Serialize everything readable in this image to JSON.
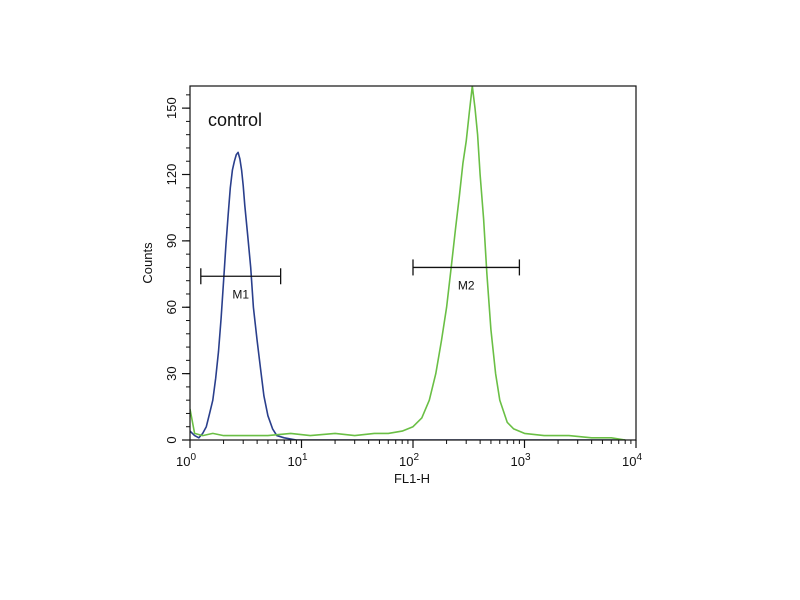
{
  "chart_data": {
    "type": "line",
    "title": "",
    "xlabel": "FL1-H",
    "ylabel": "Counts",
    "x_scale": "log",
    "xlim": [
      1,
      10000
    ],
    "ylim": [
      0,
      160
    ],
    "grid": false,
    "annotation": "control",
    "x_ticks": [
      {
        "value": 1,
        "base": "10",
        "exp": "0"
      },
      {
        "value": 10,
        "base": "10",
        "exp": "1"
      },
      {
        "value": 100,
        "base": "10",
        "exp": "2"
      },
      {
        "value": 1000,
        "base": "10",
        "exp": "3"
      },
      {
        "value": 10000,
        "base": "10",
        "exp": "4"
      }
    ],
    "y_ticks": [
      {
        "value": 0,
        "label": "0"
      },
      {
        "value": 30,
        "label": "30"
      },
      {
        "value": 60,
        "label": "60"
      },
      {
        "value": 90,
        "label": "90"
      },
      {
        "value": 120,
        "label": "120"
      },
      {
        "value": 150,
        "label": "150"
      }
    ],
    "series": [
      {
        "color": "#2a3f8c",
        "points": [
          [
            1.0,
            4
          ],
          [
            1.1,
            2
          ],
          [
            1.2,
            1
          ],
          [
            1.3,
            3
          ],
          [
            1.4,
            6
          ],
          [
            1.5,
            12
          ],
          [
            1.6,
            18
          ],
          [
            1.7,
            28
          ],
          [
            1.8,
            40
          ],
          [
            1.9,
            55
          ],
          [
            2.0,
            72
          ],
          [
            2.1,
            88
          ],
          [
            2.2,
            102
          ],
          [
            2.3,
            114
          ],
          [
            2.4,
            122
          ],
          [
            2.5,
            126
          ],
          [
            2.6,
            129
          ],
          [
            2.7,
            130
          ],
          [
            2.8,
            127
          ],
          [
            2.9,
            122
          ],
          [
            3.0,
            115
          ],
          [
            3.1,
            106
          ],
          [
            3.3,
            92
          ],
          [
            3.5,
            78
          ],
          [
            3.7,
            60
          ],
          [
            4.0,
            45
          ],
          [
            4.3,
            32
          ],
          [
            4.6,
            20
          ],
          [
            5.0,
            11
          ],
          [
            5.5,
            5
          ],
          [
            6.0,
            2
          ],
          [
            7.0,
            1
          ],
          [
            9.0,
            0
          ],
          [
            20,
            0
          ],
          [
            100,
            0
          ],
          [
            1000,
            0
          ],
          [
            8000,
            0
          ]
        ]
      },
      {
        "color": "#6abf45",
        "points": [
          [
            1.0,
            14
          ],
          [
            1.1,
            3
          ],
          [
            1.3,
            2
          ],
          [
            1.6,
            3
          ],
          [
            2.0,
            2
          ],
          [
            3,
            2
          ],
          [
            5,
            2
          ],
          [
            8,
            3
          ],
          [
            12,
            2
          ],
          [
            20,
            3
          ],
          [
            30,
            2
          ],
          [
            45,
            3
          ],
          [
            60,
            3
          ],
          [
            80,
            4
          ],
          [
            100,
            6
          ],
          [
            120,
            10
          ],
          [
            140,
            18
          ],
          [
            160,
            30
          ],
          [
            180,
            45
          ],
          [
            200,
            60
          ],
          [
            220,
            78
          ],
          [
            240,
            95
          ],
          [
            260,
            110
          ],
          [
            280,
            125
          ],
          [
            300,
            135
          ],
          [
            320,
            148
          ],
          [
            340,
            160
          ],
          [
            360,
            150
          ],
          [
            380,
            138
          ],
          [
            400,
            120
          ],
          [
            430,
            100
          ],
          [
            460,
            75
          ],
          [
            500,
            50
          ],
          [
            550,
            30
          ],
          [
            600,
            18
          ],
          [
            700,
            8
          ],
          [
            800,
            5
          ],
          [
            1000,
            3
          ],
          [
            1500,
            2
          ],
          [
            2500,
            2
          ],
          [
            4000,
            1
          ],
          [
            6000,
            1
          ],
          [
            8000,
            0
          ]
        ]
      }
    ],
    "markers": [
      {
        "label": "M1",
        "x_start": 1.25,
        "x_end": 6.5,
        "y": 74
      },
      {
        "label": "M2",
        "x_start": 100,
        "x_end": 900,
        "y": 78
      }
    ]
  }
}
